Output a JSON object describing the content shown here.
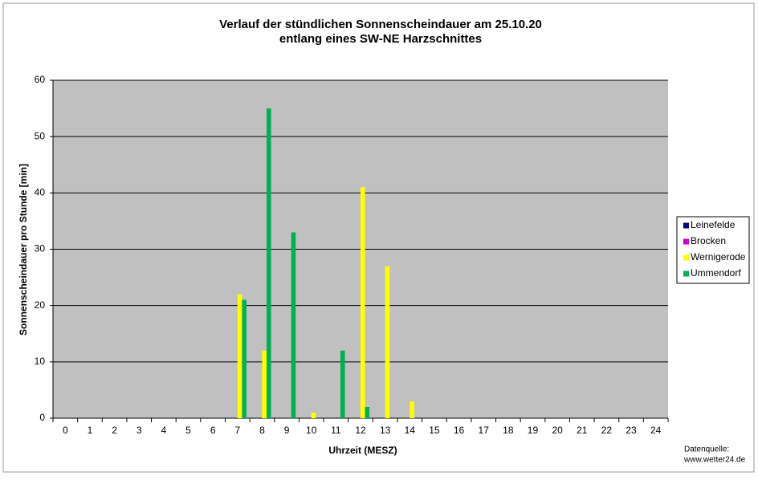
{
  "chart_data": {
    "type": "bar",
    "title": "Verlauf der stündlichen Sonnenscheindauer am 25.10.20",
    "subtitle": "entlang eines SW-NE Harzschnittes",
    "x_label": "Uhrzeit (MESZ)",
    "y_label": "Sonnenscheindauer pro Stunde [min]",
    "source": [
      "Datenquelle:",
      "www.wetter24.de"
    ],
    "categories": [
      "0",
      "1",
      "2",
      "3",
      "4",
      "5",
      "6",
      "7",
      "8",
      "9",
      "10",
      "11",
      "12",
      "13",
      "14",
      "15",
      "16",
      "17",
      "18",
      "19",
      "20",
      "21",
      "22",
      "23",
      "24"
    ],
    "series": [
      {
        "name": "Leinefelde",
        "color": "#000080",
        "values": [
          0,
          0,
          0,
          0,
          0,
          0,
          0,
          0,
          0,
          0,
          0,
          0,
          0,
          0,
          0,
          0,
          0,
          0,
          0,
          0,
          0,
          0,
          0,
          0,
          0
        ]
      },
      {
        "name": "Brocken",
        "color": "#cc00cc",
        "values": [
          0,
          0,
          0,
          0,
          0,
          0,
          0,
          0,
          0,
          0,
          0,
          0,
          0,
          0,
          0,
          0,
          0,
          0,
          0,
          0,
          0,
          0,
          0,
          0,
          0
        ]
      },
      {
        "name": "Wernigerode",
        "color": "#ffff00",
        "values": [
          0,
          0,
          0,
          0,
          0,
          0,
          0,
          22,
          12,
          0,
          1,
          0,
          41,
          27,
          3,
          0,
          0,
          0,
          0,
          0,
          0,
          0,
          0,
          0,
          0
        ]
      },
      {
        "name": "Ummendorf",
        "color": "#00b050",
        "values": [
          0,
          0,
          0,
          0,
          0,
          0,
          0,
          21,
          55,
          33,
          0,
          12,
          2,
          0,
          0,
          0,
          0,
          0,
          0,
          0,
          0,
          0,
          0,
          0,
          0
        ]
      }
    ],
    "ylim": [
      0,
      60
    ],
    "yticks": [
      0,
      10,
      20,
      30,
      40,
      50,
      60
    ],
    "grid": true,
    "legend": "right"
  }
}
